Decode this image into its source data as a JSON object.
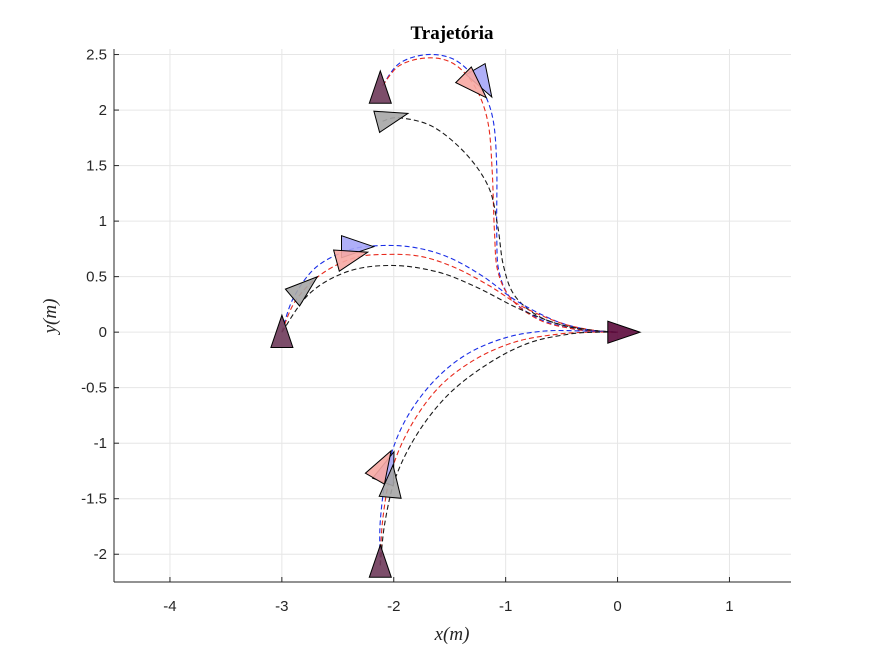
{
  "chart_data": {
    "type": "line",
    "title": "Trajetória",
    "xlabel": "x(m)",
    "ylabel": "y(m)",
    "xlim": [
      -4.5,
      1.55
    ],
    "ylim": [
      -2.25,
      2.55
    ],
    "xticks": [
      -4,
      -3,
      -2,
      -1,
      0,
      1
    ],
    "xtick_labels": [
      "-4",
      "-3",
      "-2",
      "-1",
      "0",
      "1"
    ],
    "yticks": [
      -2,
      -1.5,
      -1,
      -0.5,
      0,
      0.5,
      1,
      1.5,
      2,
      2.5
    ],
    "ytick_labels": [
      "-2",
      "-1.5",
      "-1",
      "-0.5",
      "0",
      "0.5",
      "1",
      "1.5",
      "2",
      "2.5"
    ],
    "grid": true,
    "colors": {
      "red": "#e8291c",
      "blue": "#1a2ee6",
      "black": "#1a1a1a",
      "red_fill": "#f7a8a3",
      "blue_fill": "#a6a6f7",
      "gray_fill": "#a6a6a6",
      "start_fill": "#6e3a5a",
      "goal_fill": "#5c0a3c"
    },
    "series": [
      {
        "color": "blue",
        "x": [
          -2.1,
          -1.95,
          -1.7,
          -1.45,
          -1.25,
          -1.12,
          -1.08,
          -1.08,
          -1.06,
          -0.95,
          -0.7,
          -0.4,
          -0.2,
          0
        ],
        "y": [
          2.22,
          2.42,
          2.5,
          2.45,
          2.25,
          1.95,
          1.5,
          0.9,
          0.55,
          0.3,
          0.12,
          0.03,
          0.01,
          0
        ]
      },
      {
        "color": "red",
        "x": [
          -2.1,
          -1.95,
          -1.7,
          -1.47,
          -1.28,
          -1.16,
          -1.12,
          -1.1,
          -1.07,
          -0.95,
          -0.7,
          -0.4,
          -0.15,
          0
        ],
        "y": [
          2.22,
          2.4,
          2.47,
          2.42,
          2.22,
          1.9,
          1.45,
          0.9,
          0.55,
          0.3,
          0.11,
          0.03,
          0.005,
          0
        ]
      },
      {
        "color": "black",
        "x": [
          -2.1,
          -1.95,
          -1.65,
          -1.35,
          -1.15,
          -1.07,
          -1.02,
          -0.92,
          -0.7,
          -0.4,
          -0.15,
          0
        ],
        "y": [
          1.9,
          1.93,
          1.85,
          1.6,
          1.3,
          0.95,
          0.6,
          0.33,
          0.14,
          0.04,
          0.01,
          0
        ]
      },
      {
        "color": "blue",
        "x": [
          -3,
          -2.9,
          -2.7,
          -2.4,
          -2.1,
          -1.8,
          -1.5,
          -1.2,
          -0.9,
          -0.55,
          -0.25,
          0
        ],
        "y": [
          0,
          0.3,
          0.58,
          0.74,
          0.78,
          0.76,
          0.67,
          0.5,
          0.28,
          0.1,
          0.02,
          0
        ]
      },
      {
        "color": "red",
        "x": [
          -3,
          -2.88,
          -2.65,
          -2.35,
          -2.05,
          -1.75,
          -1.45,
          -1.15,
          -0.85,
          -0.5,
          -0.2,
          0
        ],
        "y": [
          0,
          0.28,
          0.52,
          0.67,
          0.7,
          0.68,
          0.58,
          0.42,
          0.23,
          0.08,
          0.015,
          0
        ]
      },
      {
        "color": "black",
        "x": [
          -3,
          -2.75,
          -2.4,
          -2.0,
          -1.6,
          -1.25,
          -0.9,
          -0.55,
          -0.25,
          0
        ],
        "y": [
          0,
          0.35,
          0.55,
          0.6,
          0.54,
          0.4,
          0.22,
          0.08,
          0.02,
          0
        ]
      },
      {
        "color": "blue",
        "x": [
          -2.12,
          -2.12,
          -2.05,
          -1.9,
          -1.65,
          -1.35,
          -1.0,
          -0.65,
          -0.3,
          0
        ],
        "y": [
          -2.1,
          -1.7,
          -1.2,
          -0.8,
          -0.45,
          -0.2,
          -0.05,
          0.01,
          0.01,
          0
        ]
      },
      {
        "color": "red",
        "x": [
          -2.12,
          -2.1,
          -2.02,
          -1.85,
          -1.6,
          -1.28,
          -0.92,
          -0.55,
          -0.25,
          0
        ],
        "y": [
          -2.1,
          -1.7,
          -1.25,
          -0.85,
          -0.5,
          -0.25,
          -0.09,
          -0.02,
          0,
          0
        ]
      },
      {
        "color": "black",
        "x": [
          -2.12,
          -2.08,
          -1.98,
          -1.78,
          -1.5,
          -1.15,
          -0.8,
          -0.45,
          -0.2,
          0
        ],
        "y": [
          -2.1,
          -1.72,
          -1.3,
          -0.9,
          -0.55,
          -0.28,
          -0.1,
          -0.02,
          0,
          0
        ]
      }
    ],
    "markers": [
      {
        "x": -2.12,
        "y": 2.2,
        "angle": 90,
        "fill": "start_fill"
      },
      {
        "x": -3.0,
        "y": 0.0,
        "angle": 90,
        "fill": "start_fill"
      },
      {
        "x": -2.12,
        "y": -2.07,
        "angle": 90,
        "fill": "start_fill"
      },
      {
        "x": 0.05,
        "y": 0.0,
        "angle": 0,
        "fill": "goal_fill"
      },
      {
        "x": -1.2,
        "y": 2.25,
        "angle": -60,
        "fill": "blue_fill"
      },
      {
        "x": -1.28,
        "y": 2.22,
        "angle": -45,
        "fill": "red_fill"
      },
      {
        "x": -2.02,
        "y": 1.93,
        "angle": 15,
        "fill": "gray_fill"
      },
      {
        "x": -2.33,
        "y": 0.77,
        "angle": 0,
        "fill": "blue_fill"
      },
      {
        "x": -2.38,
        "y": 0.68,
        "angle": 15,
        "fill": "red_fill"
      },
      {
        "x": -2.8,
        "y": 0.4,
        "angle": 40,
        "fill": "gray_fill"
      },
      {
        "x": -2.05,
        "y": -1.22,
        "angle": 70,
        "fill": "blue_fill"
      },
      {
        "x": -2.1,
        "y": -1.2,
        "angle": 60,
        "fill": "red_fill"
      },
      {
        "x": -2.02,
        "y": -1.35,
        "angle": 85,
        "fill": "gray_fill"
      }
    ]
  }
}
